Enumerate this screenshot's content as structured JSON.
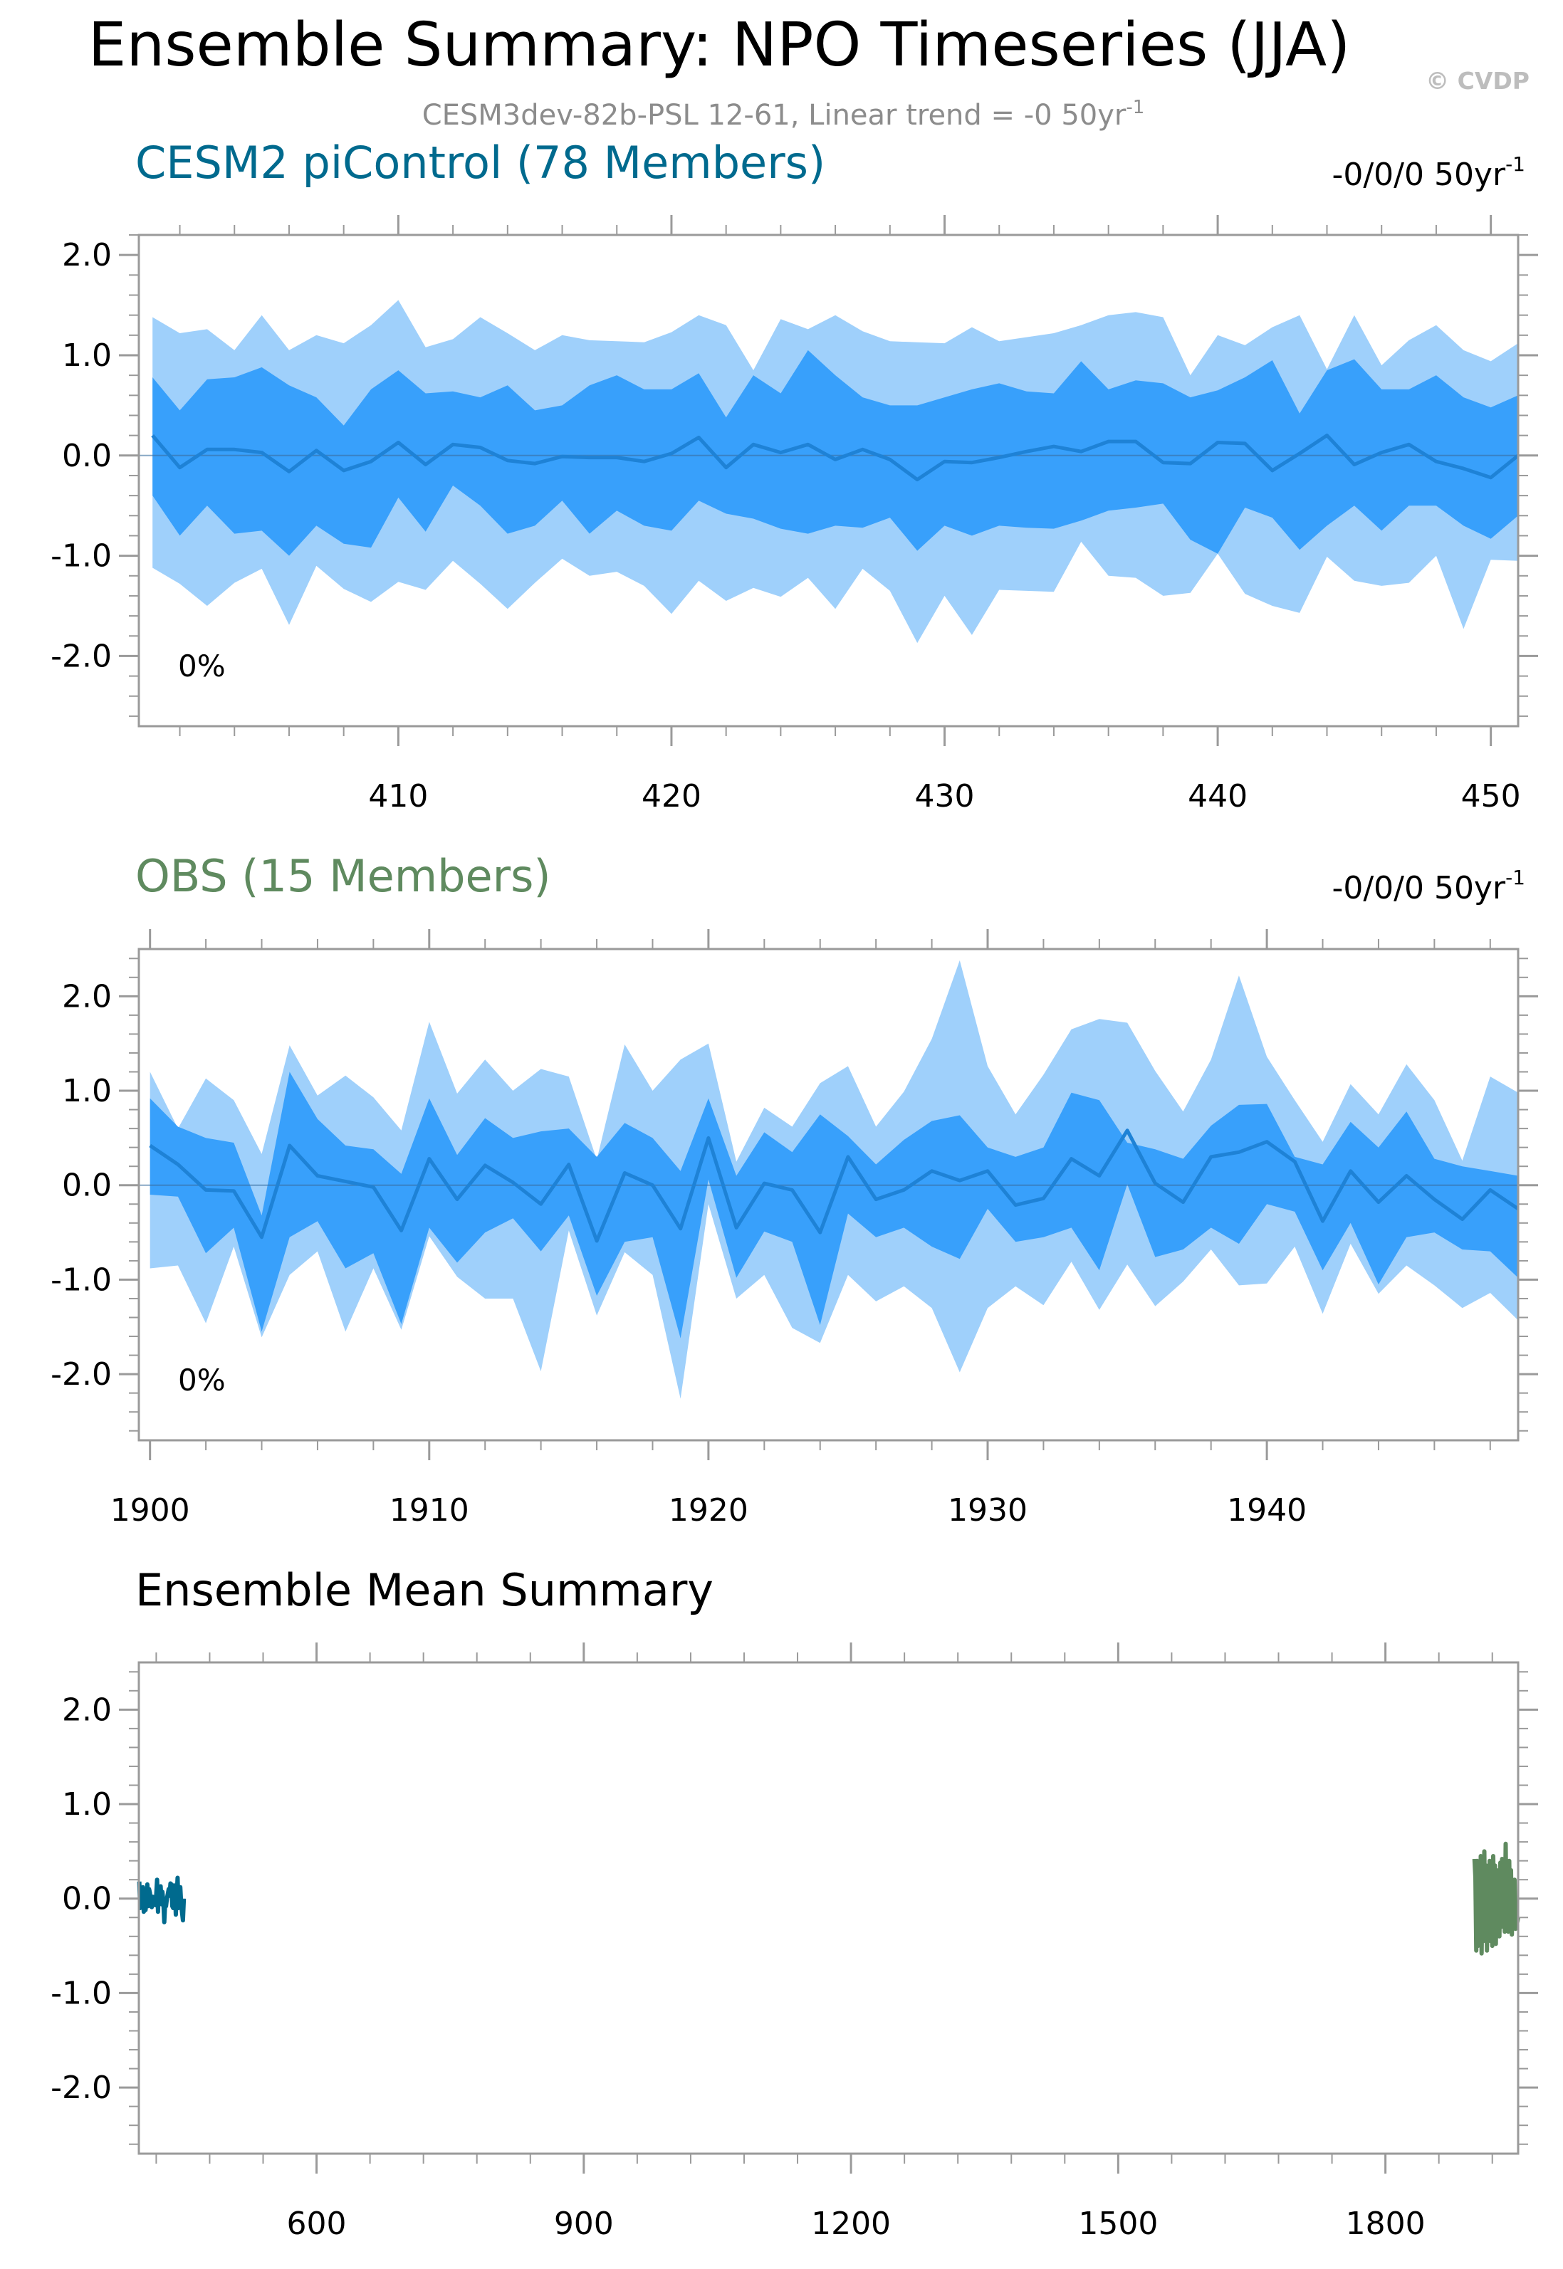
{
  "header": {
    "title": "Ensemble Summary: NPO Timeseries (JJA)",
    "copyright": "© CVDP",
    "subtitle_main": "CESM3dev-82b-PSL 12-61, Linear trend = -0 50yr",
    "subtitle_sup": "-1"
  },
  "chart_data": [
    {
      "type": "area",
      "name": "CESM2 piControl ensemble spread",
      "title": "CESM2 piControl (78 Members)",
      "title_color": "#006a8e",
      "trend_label": "-0/0/0 50yr",
      "trend_sup": "-1",
      "percent_label": "0%",
      "xlim": [
        400.5,
        451
      ],
      "ylim": [
        -2.7,
        2.2
      ],
      "x_ticks": [
        410,
        420,
        430,
        440,
        450
      ],
      "x_tick_labels": [
        "410",
        "420",
        "430",
        "440",
        "450"
      ],
      "y_ticks": [
        2.0,
        1.0,
        0.0,
        -1.0,
        -2.0
      ],
      "y_tick_labels": [
        "2.0",
        "1.0",
        "0.0",
        "-1.0",
        "-2.0"
      ],
      "x_start": 401,
      "x_step": 1,
      "series": [
        {
          "name": "max",
          "values": [
            1.38,
            1.22,
            1.26,
            1.05,
            1.4,
            1.05,
            1.2,
            1.12,
            1.3,
            1.55,
            1.08,
            1.16,
            1.38,
            1.22,
            1.05,
            1.2,
            1.15,
            1.14,
            1.13,
            1.23,
            1.4,
            1.3,
            0.85,
            1.36,
            1.26,
            1.4,
            1.24,
            1.14,
            1.13,
            1.12,
            1.28,
            1.14,
            1.18,
            1.22,
            1.3,
            1.4,
            1.43,
            1.38,
            0.8,
            1.2,
            1.1,
            1.28,
            1.4,
            0.86,
            1.4,
            0.9,
            1.15,
            1.3,
            1.05,
            0.94,
            1.12
          ]
        },
        {
          "name": "p90",
          "values": [
            0.78,
            0.45,
            0.76,
            0.78,
            0.88,
            0.7,
            0.58,
            0.3,
            0.66,
            0.85,
            0.62,
            0.64,
            0.58,
            0.7,
            0.45,
            0.5,
            0.7,
            0.8,
            0.66,
            0.66,
            0.82,
            0.38,
            0.8,
            0.62,
            1.05,
            0.8,
            0.58,
            0.5,
            0.5,
            0.58,
            0.66,
            0.72,
            0.64,
            0.62,
            0.94,
            0.66,
            0.75,
            0.72,
            0.58,
            0.65,
            0.78,
            0.95,
            0.42,
            0.85,
            0.96,
            0.66,
            0.66,
            0.8,
            0.58,
            0.48,
            0.6
          ]
        },
        {
          "name": "mean",
          "values": [
            0.2,
            -0.12,
            0.06,
            0.06,
            0.03,
            -0.16,
            0.05,
            -0.15,
            -0.06,
            0.13,
            -0.09,
            0.11,
            0.08,
            -0.05,
            -0.08,
            -0.01,
            -0.02,
            -0.02,
            -0.06,
            0.02,
            0.18,
            -0.12,
            0.11,
            0.03,
            0.11,
            -0.04,
            0.06,
            -0.04,
            -0.24,
            -0.06,
            -0.07,
            -0.02,
            0.04,
            0.09,
            0.04,
            0.14,
            0.14,
            -0.07,
            -0.08,
            0.13,
            0.12,
            -0.15,
            0.02,
            0.2,
            -0.09,
            0.03,
            0.11,
            -0.06,
            -0.13,
            -0.22,
            0.0
          ]
        },
        {
          "name": "p10",
          "values": [
            -0.4,
            -0.8,
            -0.5,
            -0.78,
            -0.75,
            -1.0,
            -0.7,
            -0.88,
            -0.92,
            -0.42,
            -0.76,
            -0.3,
            -0.5,
            -0.78,
            -0.7,
            -0.45,
            -0.78,
            -0.55,
            -0.7,
            -0.75,
            -0.45,
            -0.58,
            -0.63,
            -0.73,
            -0.78,
            -0.7,
            -0.72,
            -0.62,
            -0.95,
            -0.7,
            -0.8,
            -0.7,
            -0.72,
            -0.73,
            -0.65,
            -0.55,
            -0.52,
            -0.48,
            -0.84,
            -0.98,
            -0.52,
            -0.62,
            -0.94,
            -0.7,
            -0.5,
            -0.75,
            -0.5,
            -0.5,
            -0.7,
            -0.83,
            -0.6
          ]
        },
        {
          "name": "min",
          "values": [
            -1.12,
            -1.28,
            -1.5,
            -1.27,
            -1.13,
            -1.69,
            -1.1,
            -1.33,
            -1.46,
            -1.26,
            -1.34,
            -1.05,
            -1.28,
            -1.53,
            -1.27,
            -1.03,
            -1.2,
            -1.16,
            -1.3,
            -1.58,
            -1.25,
            -1.45,
            -1.32,
            -1.41,
            -1.22,
            -1.53,
            -1.13,
            -1.35,
            -1.87,
            -1.4,
            -1.79,
            -1.34,
            -1.35,
            -1.36,
            -0.86,
            -1.2,
            -1.22,
            -1.4,
            -1.37,
            -0.98,
            -1.38,
            -1.5,
            -1.57,
            -1.01,
            -1.25,
            -1.3,
            -1.27,
            -1.0,
            -1.73,
            -1.04,
            -1.05
          ]
        }
      ]
    },
    {
      "type": "area",
      "name": "OBS ensemble spread",
      "title": "OBS (15 Members)",
      "title_color": "#5f8a5f",
      "trend_label": "-0/0/0 50yr",
      "trend_sup": "-1",
      "percent_label": "0%",
      "xlim": [
        1899.6,
        1949
      ],
      "ylim": [
        -2.7,
        2.5
      ],
      "x_ticks": [
        1900,
        1910,
        1920,
        1930,
        1940
      ],
      "x_tick_labels": [
        "1900",
        "1910",
        "1920",
        "1930",
        "1940"
      ],
      "y_ticks": [
        2.0,
        1.0,
        0.0,
        -1.0,
        -2.0
      ],
      "y_tick_labels": [
        "2.0",
        "1.0",
        "0.0",
        "-1.0",
        "-2.0"
      ],
      "x_start": 1900,
      "x_step": 1,
      "series": [
        {
          "name": "max",
          "values": [
            1.2,
            0.6,
            1.13,
            0.9,
            0.33,
            1.48,
            0.95,
            1.16,
            0.93,
            0.58,
            1.73,
            0.97,
            1.33,
            1.0,
            1.23,
            1.15,
            0.27,
            1.49,
            1.0,
            1.33,
            1.5,
            0.25,
            0.82,
            0.62,
            1.08,
            1.26,
            0.62,
            0.99,
            1.55,
            2.38,
            1.26,
            0.75,
            1.17,
            1.65,
            1.76,
            1.72,
            1.21,
            0.78,
            1.33,
            2.22,
            1.36,
            0.9,
            0.46,
            1.07,
            0.75,
            1.28,
            0.9,
            0.26,
            1.15,
            0.98
          ]
        },
        {
          "name": "p90",
          "values": [
            0.92,
            0.62,
            0.5,
            0.45,
            -0.32,
            1.2,
            0.7,
            0.42,
            0.38,
            0.12,
            0.92,
            0.32,
            0.71,
            0.5,
            0.57,
            0.6,
            0.3,
            0.66,
            0.5,
            0.15,
            0.92,
            0.1,
            0.56,
            0.35,
            0.75,
            0.52,
            0.22,
            0.48,
            0.68,
            0.74,
            0.4,
            0.3,
            0.4,
            0.98,
            0.9,
            0.45,
            0.38,
            0.28,
            0.63,
            0.85,
            0.86,
            0.3,
            0.22,
            0.67,
            0.4,
            0.78,
            0.28,
            0.2,
            0.15,
            0.1
          ]
        },
        {
          "name": "mean",
          "values": [
            0.42,
            0.22,
            -0.05,
            -0.06,
            -0.55,
            0.42,
            0.1,
            0.04,
            -0.02,
            -0.48,
            0.28,
            -0.15,
            0.21,
            0.03,
            -0.2,
            0.22,
            -0.59,
            0.13,
            0.0,
            -0.46,
            0.5,
            -0.45,
            0.02,
            -0.05,
            -0.5,
            0.3,
            -0.15,
            -0.05,
            0.15,
            0.05,
            0.15,
            -0.21,
            -0.14,
            0.28,
            0.1,
            0.58,
            0.02,
            -0.18,
            0.3,
            0.35,
            0.46,
            0.25,
            -0.38,
            0.15,
            -0.18,
            0.1,
            -0.15,
            -0.36,
            -0.05,
            -0.25
          ]
        },
        {
          "name": "p10",
          "values": [
            -0.1,
            -0.12,
            -0.72,
            -0.45,
            -1.55,
            -0.55,
            -0.38,
            -0.88,
            -0.72,
            -1.47,
            -0.45,
            -0.82,
            -0.5,
            -0.35,
            -0.7,
            -0.32,
            -1.17,
            -0.6,
            -0.55,
            -1.62,
            0.06,
            -0.98,
            -0.49,
            -0.6,
            -1.48,
            -0.3,
            -0.55,
            -0.45,
            -0.65,
            -0.78,
            -0.25,
            -0.6,
            -0.55,
            -0.45,
            -0.9,
            0.01,
            -0.76,
            -0.68,
            -0.45,
            -0.62,
            -0.2,
            -0.28,
            -0.9,
            -0.4,
            -1.05,
            -0.55,
            -0.5,
            -0.68,
            -0.7,
            -0.98
          ]
        },
        {
          "name": "min",
          "values": [
            -0.88,
            -0.85,
            -1.46,
            -0.65,
            -1.61,
            -0.95,
            -0.7,
            -1.55,
            -0.88,
            -1.53,
            -0.54,
            -0.97,
            -1.2,
            -1.2,
            -1.97,
            -0.48,
            -1.38,
            -0.71,
            -0.95,
            -2.26,
            -0.2,
            -1.2,
            -0.95,
            -1.51,
            -1.67,
            -0.95,
            -1.23,
            -1.07,
            -1.3,
            -1.98,
            -1.3,
            -1.07,
            -1.27,
            -0.81,
            -1.32,
            -0.84,
            -1.28,
            -1.02,
            -0.68,
            -1.06,
            -1.04,
            -0.65,
            -1.36,
            -0.62,
            -1.15,
            -0.85,
            -1.06,
            -1.3,
            -1.14,
            -1.43
          ]
        }
      ]
    },
    {
      "type": "line",
      "name": "Ensemble mean summary",
      "title": "Ensemble Mean Summary",
      "xlim": [
        400.5,
        1949
      ],
      "ylim": [
        -2.7,
        2.5
      ],
      "x_ticks": [
        600,
        900,
        1200,
        1500,
        1800
      ],
      "x_tick_labels": [
        "600",
        "900",
        "1200",
        "1500",
        "1800"
      ],
      "y_ticks": [
        2.0,
        1.0,
        0.0,
        -1.0,
        -2.0
      ],
      "y_tick_labels": [
        "2.0",
        "1.0",
        "0.0",
        "-1.0",
        "-2.0"
      ],
      "series": [
        {
          "name": "CESM2 piControl",
          "color": "#006a8e",
          "x_start": 401,
          "x_step": 1,
          "values": [
            0.18,
            -0.1,
            0.08,
            0.02,
            0.12,
            -0.14,
            0.05,
            -0.12,
            -0.04,
            0.15,
            -0.08,
            0.1,
            0.06,
            -0.05,
            -0.09,
            0.02,
            -0.03,
            0.0,
            -0.07,
            0.04,
            0.2,
            -0.14,
            0.12,
            0.04,
            0.13,
            -0.06,
            0.07,
            -0.03,
            -0.25,
            -0.05,
            -0.08,
            0.0,
            0.05,
            0.1,
            0.03,
            0.16,
            0.15,
            -0.08,
            -0.1,
            0.14,
            0.1,
            -0.17,
            0.03,
            0.22,
            -0.1,
            0.04,
            0.12,
            -0.05,
            -0.15,
            -0.23,
            0.0
          ]
        },
        {
          "name": "OBS",
          "color": "#5f8a5f",
          "x_start": 1900,
          "x_step": 1,
          "values": [
            0.42,
            0.22,
            -0.55,
            0.4,
            -0.5,
            0.28,
            -0.35,
            0.45,
            -0.58,
            0.2,
            -0.45,
            0.5,
            -0.3,
            0.35,
            -0.55,
            0.15,
            -0.4,
            0.4,
            -0.45,
            0.3,
            -0.5,
            0.45,
            -0.2,
            0.35,
            -0.48,
            0.3,
            -0.15,
            0.25,
            -0.4,
            0.38,
            -0.3,
            0.42,
            -0.25,
            0.3,
            -0.35,
            0.58,
            -0.2,
            0.25,
            -0.35,
            0.4,
            -0.25,
            0.3,
            -0.38,
            0.15,
            -0.3,
            0.2,
            -0.32,
            -0.05,
            -0.25,
            -0.2
          ]
        }
      ]
    }
  ]
}
